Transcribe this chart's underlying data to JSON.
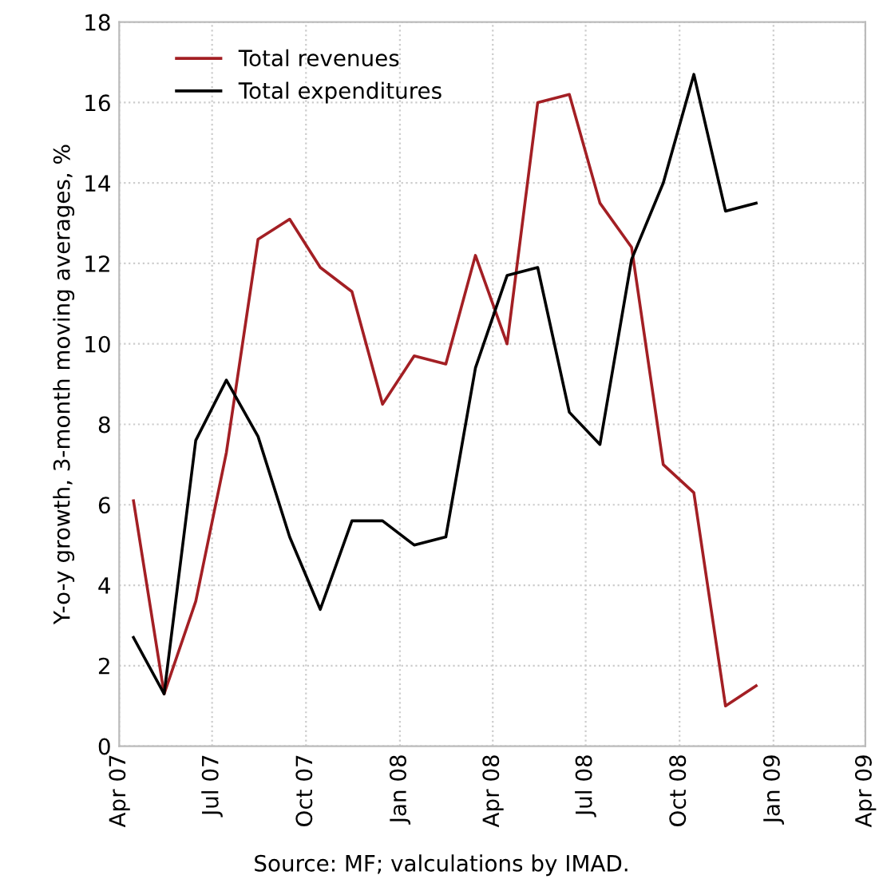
{
  "chart_data": {
    "type": "line",
    "x": [
      "2007-04-15",
      "2007-05-15",
      "2007-06-15",
      "2007-07-15",
      "2007-08-15",
      "2007-09-15",
      "2007-10-15",
      "2007-11-15",
      "2007-12-15",
      "2008-01-15",
      "2008-02-15",
      "2008-03-15",
      "2008-04-15",
      "2008-05-15",
      "2008-06-15",
      "2008-07-15",
      "2008-08-15",
      "2008-09-15",
      "2008-10-15",
      "2008-11-15",
      "2008-12-15"
    ],
    "series": [
      {
        "name": "Total revenues",
        "color": "#a31f24",
        "values": [
          6.1,
          1.3,
          3.6,
          7.3,
          12.6,
          13.1,
          11.9,
          11.3,
          8.5,
          9.7,
          9.5,
          12.2,
          10.0,
          16.0,
          16.2,
          13.5,
          12.4,
          7.0,
          6.3,
          1.0,
          1.5
        ]
      },
      {
        "name": "Total expenditures",
        "color": "#000000",
        "values": [
          2.7,
          1.3,
          7.6,
          9.1,
          7.7,
          5.2,
          3.4,
          5.6,
          5.6,
          5.0,
          5.2,
          9.4,
          11.7,
          11.9,
          8.3,
          7.5,
          12.1,
          14.0,
          16.7,
          13.3,
          13.5
        ]
      }
    ],
    "ylabel": "Y-o-y growth, 3-month moving averages, %",
    "annotations": [
      "Source: MF; valculations by IMAD."
    ],
    "xlim": [
      "2007-04-01",
      "2009-04-01"
    ],
    "xticks": [
      {
        "value": "2007-04-01",
        "label": "Apr 07"
      },
      {
        "value": "2007-07-01",
        "label": "Jul 07"
      },
      {
        "value": "2007-10-01",
        "label": "Oct 07"
      },
      {
        "value": "2008-01-01",
        "label": "Jan 08"
      },
      {
        "value": "2008-04-01",
        "label": "Apr 08"
      },
      {
        "value": "2008-07-01",
        "label": "Jul 08"
      },
      {
        "value": "2008-10-01",
        "label": "Oct 08"
      },
      {
        "value": "2009-01-01",
        "label": "Jan 09"
      },
      {
        "value": "2009-04-01",
        "label": "Apr 09"
      }
    ],
    "ylim": [
      0,
      18
    ],
    "yticks": [
      0,
      2,
      4,
      6,
      8,
      10,
      12,
      14,
      16,
      18
    ],
    "grid": true,
    "legend": "top left",
    "marker": "none",
    "line_style": "solid"
  }
}
